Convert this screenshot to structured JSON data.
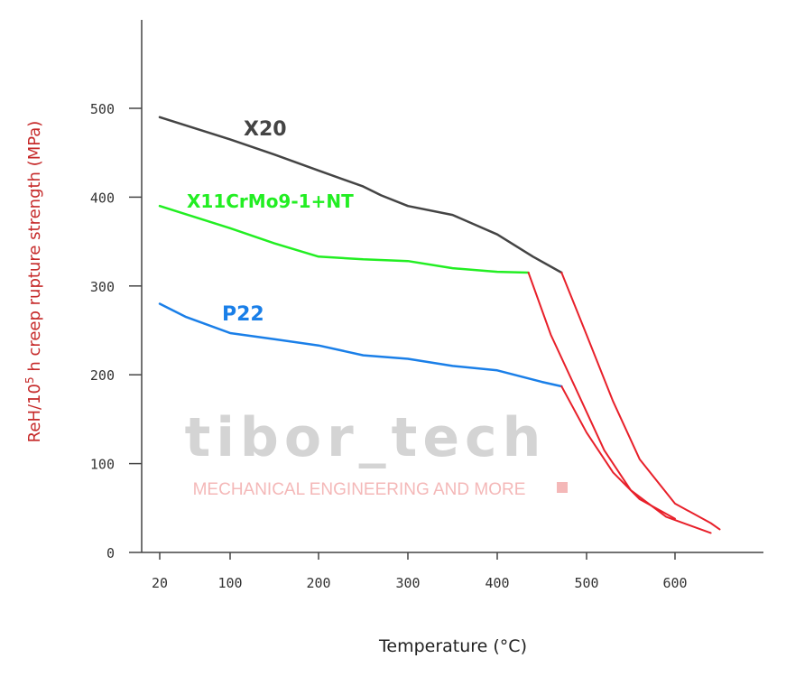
{
  "chart_data": {
    "type": "line",
    "xlabel": "Temperature (°C)",
    "ylabel_main": "ReH/10",
    "ylabel_sup": "5",
    "ylabel_rest": " h creep rupture strength (MPa)",
    "x_ticks": [
      20,
      100,
      200,
      300,
      400,
      500,
      600
    ],
    "y_ticks": [
      0,
      100,
      200,
      300,
      400,
      500
    ],
    "xlim": [
      0,
      700
    ],
    "ylim": [
      0,
      600
    ],
    "grid": false,
    "series": [
      {
        "name": "X20",
        "color": "#444444",
        "x": [
          20,
          100,
          150,
          200,
          250,
          270,
          300,
          350,
          400,
          440,
          472
        ],
        "y": [
          490,
          465,
          448,
          430,
          412,
          402,
          390,
          380,
          358,
          333,
          315
        ]
      },
      {
        "name": "X11CrMo9-1+NT",
        "color": "#22ee22",
        "x": [
          20,
          100,
          150,
          200,
          250,
          300,
          350,
          400,
          435
        ],
        "y": [
          390,
          365,
          348,
          333,
          330,
          328,
          320,
          316,
          315
        ]
      },
      {
        "name": "P22",
        "color": "#1a7fe8",
        "x": [
          20,
          50,
          100,
          150,
          200,
          250,
          300,
          350,
          400,
          450,
          472
        ],
        "y": [
          280,
          265,
          247,
          240,
          233,
          222,
          218,
          210,
          205,
          192,
          187
        ]
      }
    ],
    "extensions": [
      {
        "color": "#e8202a",
        "x": [
          472,
          500,
          530,
          560,
          600,
          640,
          650
        ],
        "y": [
          315,
          245,
          170,
          105,
          55,
          33,
          26
        ]
      },
      {
        "color": "#e8202a",
        "x": [
          435,
          460,
          490,
          520,
          550,
          590,
          640
        ],
        "y": [
          315,
          245,
          180,
          115,
          70,
          40,
          22
        ]
      },
      {
        "color": "#e8202a",
        "x": [
          472,
          500,
          530,
          560,
          600
        ],
        "y": [
          187,
          135,
          90,
          60,
          38
        ]
      }
    ]
  },
  "watermark": {
    "text": "tibor_tech",
    "subtitle": "MECHANICAL ENGINEERING AND MORE",
    "color_main": "#d4d4d4",
    "color_sub": "#f4b8b8"
  }
}
